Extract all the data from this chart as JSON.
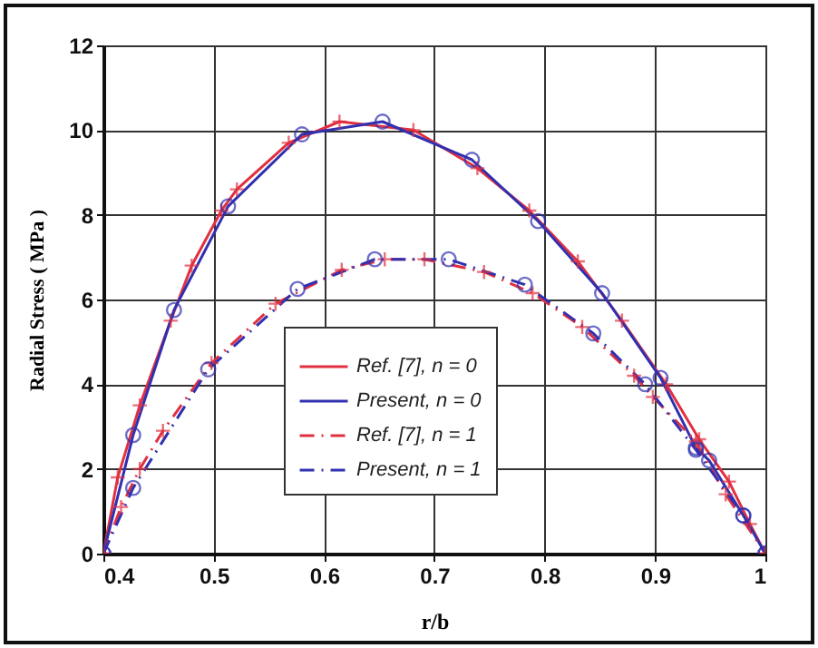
{
  "chart_data": {
    "type": "line",
    "xlabel": "r/b",
    "ylabel": "Radial Stress ( MPa )",
    "xlim": [
      0.4,
      1
    ],
    "xticks": [
      0.4,
      0.5,
      0.6,
      0.7,
      0.8,
      0.9,
      1
    ],
    "ylim": [
      0,
      12
    ],
    "yticks": [
      0,
      2,
      4,
      6,
      8,
      10,
      12
    ],
    "grid": true,
    "legend": "bottom",
    "series": [
      {
        "name": "Ref. [7], n = 0",
        "color": "#e03040",
        "marker": "cross",
        "line_style": "solid",
        "x": [
          0.4,
          0.413,
          0.433,
          0.461,
          0.48,
          0.507,
          0.521,
          0.568,
          0.614,
          0.681,
          0.739,
          0.786,
          0.83,
          0.87,
          0.91,
          0.94,
          0.967,
          0.986,
          1
        ],
        "values": [
          0,
          1.8,
          3.5,
          5.5,
          6.8,
          8.1,
          8.6,
          9.7,
          10.2,
          10.0,
          9.1,
          8.1,
          6.9,
          5.5,
          4.0,
          2.7,
          1.7,
          0.7,
          0
        ]
      },
      {
        "name": "Present, n = 0",
        "color": "#3030b0",
        "marker": "circle",
        "line_style": "solid",
        "x": [
          0.4,
          0.427,
          0.464,
          0.513,
          0.58,
          0.653,
          0.734,
          0.794,
          0.852,
          0.905,
          0.937,
          0.949,
          0.98,
          1
        ],
        "values": [
          0,
          2.8,
          5.75,
          8.2,
          9.9,
          10.2,
          9.3,
          7.85,
          6.15,
          4.15,
          2.5,
          2.2,
          0.9,
          0
        ]
      },
      {
        "name": "Ref. [7], n = 1",
        "color": "#e03040",
        "marker": "cross",
        "line_style": "dashed",
        "x": [
          0.4,
          0.416,
          0.433,
          0.454,
          0.498,
          0.556,
          0.616,
          0.655,
          0.691,
          0.745,
          0.789,
          0.834,
          0.881,
          0.898,
          0.937,
          0.964,
          1
        ],
        "values": [
          0,
          1.1,
          2.0,
          2.9,
          4.5,
          5.9,
          6.7,
          6.95,
          6.95,
          6.65,
          6.15,
          5.35,
          4.2,
          3.7,
          2.65,
          1.4,
          0
        ]
      },
      {
        "name": "Present, n = 1",
        "color": "#3030b0",
        "marker": "circle",
        "line_style": "dashed",
        "x": [
          0.4,
          0.427,
          0.495,
          0.576,
          0.646,
          0.713,
          0.782,
          0.844,
          0.891,
          0.937,
          0.98,
          1
        ],
        "values": [
          0,
          1.55,
          4.35,
          6.25,
          6.95,
          6.95,
          6.35,
          5.2,
          4.0,
          2.45,
          0.9,
          0
        ]
      }
    ]
  }
}
